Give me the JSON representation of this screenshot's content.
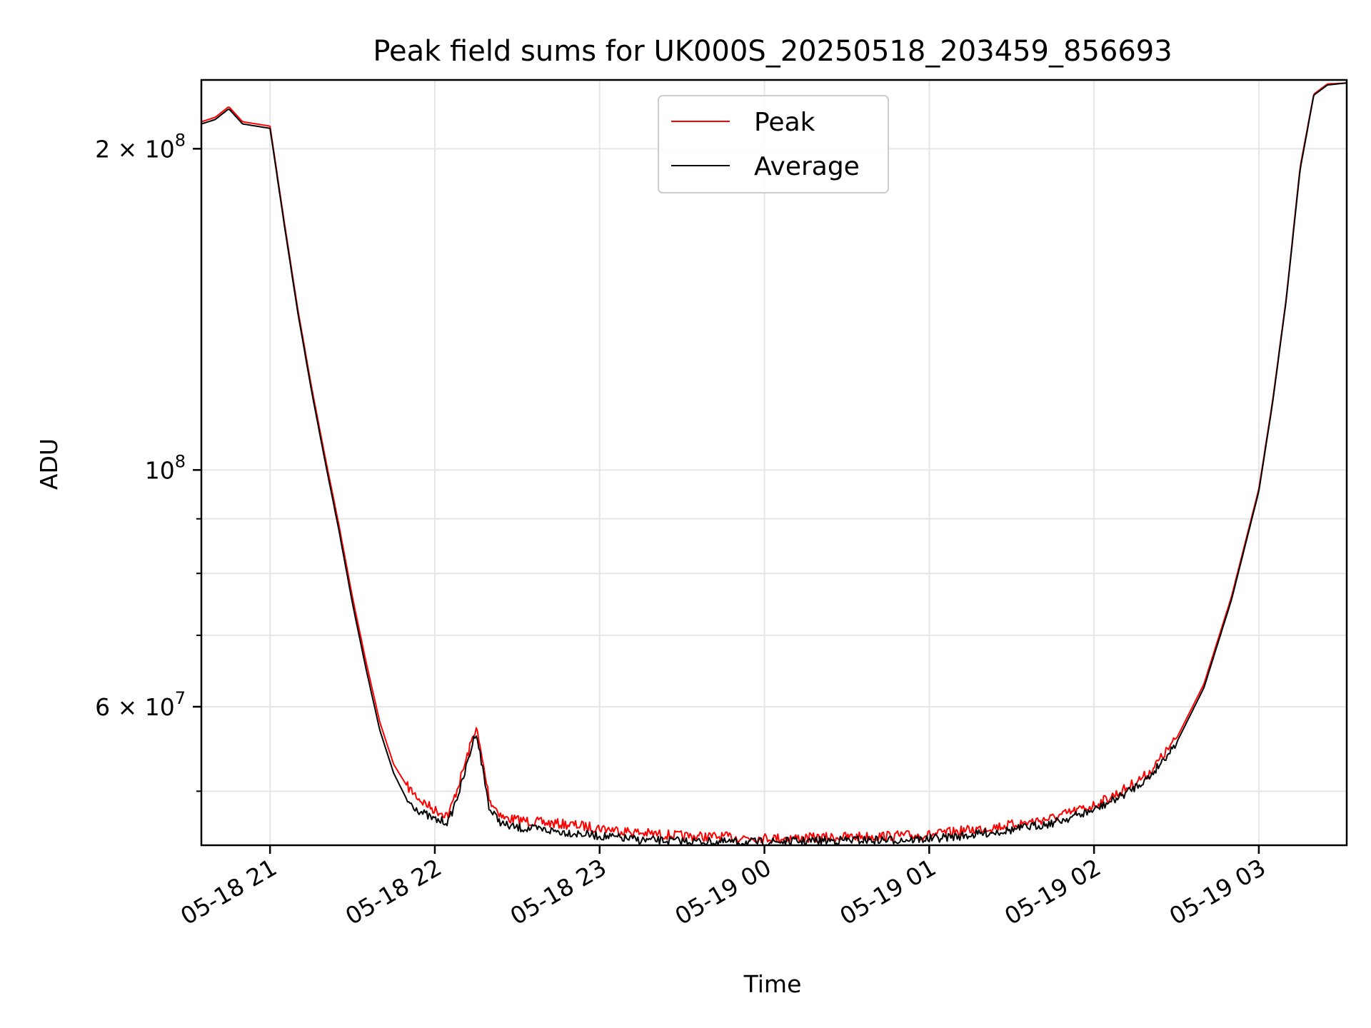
{
  "chart_data": {
    "type": "line",
    "title": "Peak field sums for UK000S_20250518_203459_856693",
    "xlabel": "Time",
    "ylabel": "ADU",
    "y_scale": "log",
    "ylim": [
      44500000,
      232000000
    ],
    "xlim": [
      "2025-05-18 20:35",
      "2025-05-19 03:32"
    ],
    "grid": true,
    "legend_position": "upper center",
    "x_ticks": [
      {
        "time": "2025-05-18 21:00",
        "label": "05-18 21"
      },
      {
        "time": "2025-05-18 22:00",
        "label": "05-18 22"
      },
      {
        "time": "2025-05-18 23:00",
        "label": "05-18 23"
      },
      {
        "time": "2025-05-19 00:00",
        "label": "05-19 00"
      },
      {
        "time": "2025-05-19 01:00",
        "label": "05-19 01"
      },
      {
        "time": "2025-05-19 02:00",
        "label": "05-19 02"
      },
      {
        "time": "2025-05-19 03:00",
        "label": "05-19 03"
      }
    ],
    "y_major_ticks": [
      {
        "value": 200000000,
        "mantissa": "2",
        "exponent": "8"
      },
      {
        "value": 100000000,
        "mantissa": "",
        "exponent": "8"
      },
      {
        "value": 60000000,
        "mantissa": "6",
        "exponent": "7"
      }
    ],
    "y_minor_ticks": [
      50000000,
      70000000,
      80000000,
      90000000
    ],
    "x": [
      "2025-05-18 20:35",
      "2025-05-18 20:40",
      "2025-05-18 20:45",
      "2025-05-18 20:50",
      "2025-05-18 20:55",
      "2025-05-18 21:00",
      "2025-05-18 21:05",
      "2025-05-18 21:10",
      "2025-05-18 21:15",
      "2025-05-18 21:20",
      "2025-05-18 21:25",
      "2025-05-18 21:30",
      "2025-05-18 21:35",
      "2025-05-18 21:40",
      "2025-05-18 21:45",
      "2025-05-18 21:50",
      "2025-05-18 21:55",
      "2025-05-18 22:00",
      "2025-05-18 22:05",
      "2025-05-18 22:10",
      "2025-05-18 22:15",
      "2025-05-18 22:20",
      "2025-05-18 22:25",
      "2025-05-18 22:30",
      "2025-05-18 22:40",
      "2025-05-18 22:50",
      "2025-05-18 23:00",
      "2025-05-18 23:15",
      "2025-05-18 23:30",
      "2025-05-18 23:45",
      "2025-05-19 00:00",
      "2025-05-19 00:15",
      "2025-05-19 00:30",
      "2025-05-19 00:45",
      "2025-05-19 01:00",
      "2025-05-19 01:15",
      "2025-05-19 01:30",
      "2025-05-19 01:45",
      "2025-05-19 02:00",
      "2025-05-19 02:10",
      "2025-05-19 02:20",
      "2025-05-19 02:30",
      "2025-05-19 02:40",
      "2025-05-19 02:50",
      "2025-05-19 03:00",
      "2025-05-19 03:05",
      "2025-05-19 03:10",
      "2025-05-19 03:15",
      "2025-05-19 03:20",
      "2025-05-19 03:25",
      "2025-05-19 03:32"
    ],
    "series": [
      {
        "name": "Peak",
        "color": "#ff0000",
        "values": [
          212000000,
          214000000,
          219000000,
          212000000,
          211000000,
          210000000,
          172000000,
          142000000,
          120000000,
          103000000,
          89000000,
          76000000,
          66000000,
          58000000,
          53000000,
          50500000,
          49000000,
          48000000,
          47500000,
          52000000,
          57500000,
          49000000,
          47200000,
          47000000,
          46700000,
          46500000,
          46200000,
          45700000,
          45400000,
          45300000,
          45200000,
          45200000,
          45300000,
          45400000,
          45500000,
          46000000,
          46500000,
          47200000,
          48500000,
          50000000,
          52000000,
          56000000,
          63000000,
          76000000,
          96000000,
          116000000,
          145000000,
          192000000,
          225000000,
          230000000,
          230500000
        ]
      },
      {
        "name": "Average",
        "color": "#000000",
        "values": [
          211000000,
          213000000,
          218000000,
          211000000,
          210000000,
          209000000,
          171000000,
          141000000,
          119000000,
          102000000,
          88000000,
          75000000,
          65000000,
          57000000,
          52000000,
          49000000,
          47800000,
          47000000,
          46800000,
          51000000,
          57000000,
          48000000,
          46500000,
          46200000,
          46000000,
          45700000,
          45400000,
          45000000,
          44900000,
          44800000,
          44800000,
          44900000,
          45000000,
          45000000,
          45100000,
          45500000,
          46000000,
          46700000,
          48000000,
          49500000,
          51500000,
          55500000,
          62500000,
          75500000,
          95500000,
          115500000,
          144500000,
          191000000,
          224500000,
          229500000,
          230500000
        ]
      }
    ]
  }
}
